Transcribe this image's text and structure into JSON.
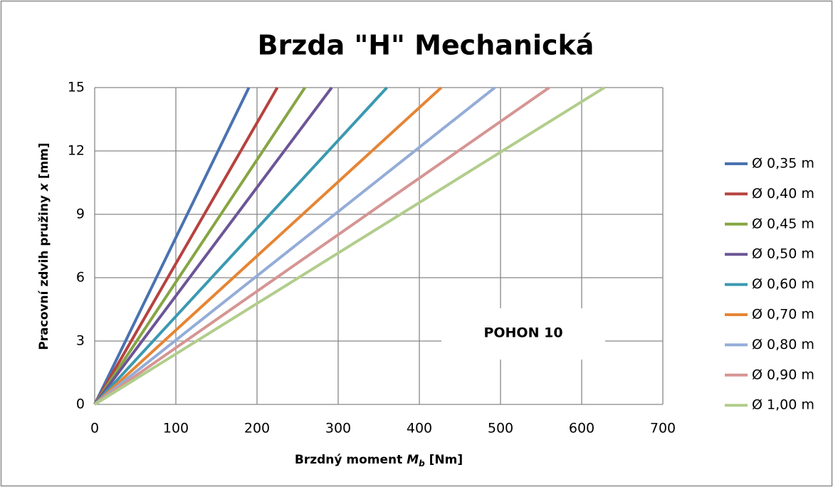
{
  "chart_data": {
    "type": "line",
    "title": "Brzda \"H\" Mechanická",
    "xlabel_parts": [
      "Brzdný moment ",
      "M",
      "b",
      " [Nm]"
    ],
    "ylabel_parts": [
      "Pracovní zdvih pružiny ",
      "x",
      " [mm]"
    ],
    "xlim": [
      0,
      700
    ],
    "xticks": [
      0,
      100,
      200,
      300,
      400,
      500,
      600,
      700
    ],
    "ylim": [
      0,
      15
    ],
    "yticks": [
      0,
      3,
      6,
      9,
      12,
      15
    ],
    "grid": true,
    "legend": "right",
    "annotation": "POHON 10",
    "series": [
      {
        "name": "Ø 0,35 m",
        "color": "#4a72b0",
        "x": [
          0,
          190
        ],
        "values": [
          0,
          15
        ]
      },
      {
        "name": "Ø 0,40 m",
        "color": "#b6423f",
        "x": [
          0,
          225
        ],
        "values": [
          0,
          15
        ]
      },
      {
        "name": "Ø 0,45 m",
        "color": "#86a544",
        "x": [
          0,
          259
        ],
        "values": [
          0,
          15
        ]
      },
      {
        "name": "Ø 0,50 m",
        "color": "#6c5596",
        "x": [
          0,
          292
        ],
        "values": [
          0,
          15
        ]
      },
      {
        "name": "Ø 0,60 m",
        "color": "#3a99b0",
        "x": [
          0,
          360
        ],
        "values": [
          0,
          15
        ]
      },
      {
        "name": "Ø 0,70 m",
        "color": "#e58535",
        "x": [
          0,
          427
        ],
        "values": [
          0,
          15
        ]
      },
      {
        "name": "Ø 0,80 m",
        "color": "#94acd7",
        "x": [
          0,
          493
        ],
        "values": [
          0,
          15
        ]
      },
      {
        "name": "Ø 0,90 m",
        "color": "#d59593",
        "x": [
          0,
          560
        ],
        "values": [
          0,
          15
        ]
      },
      {
        "name": "Ø 1,00 m",
        "color": "#b2cd8c",
        "x": [
          0,
          628
        ],
        "values": [
          0,
          15
        ]
      }
    ]
  }
}
